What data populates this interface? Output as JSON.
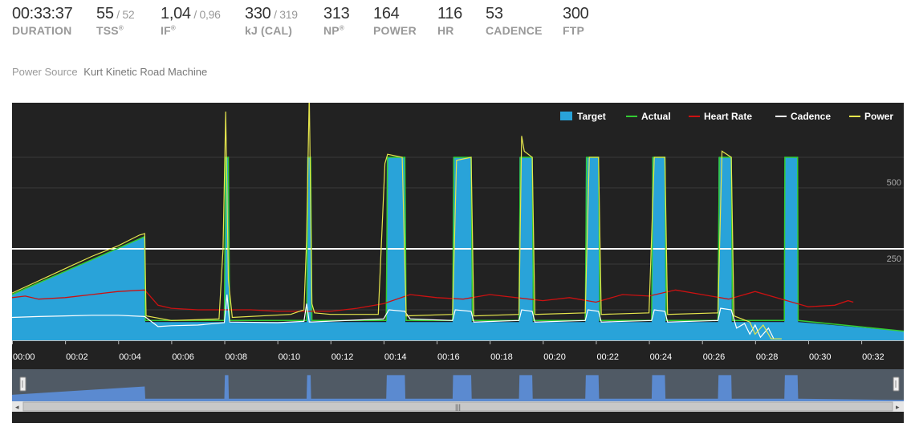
{
  "stats": [
    {
      "value": "00:33:37",
      "sub": "",
      "label": "DURATION",
      "reg": false
    },
    {
      "value": "55",
      "sub": "/ 52",
      "label": "TSS",
      "reg": true
    },
    {
      "value": "1,04",
      "sub": "/ 0,96",
      "label": "IF",
      "reg": true
    },
    {
      "value": "330",
      "sub": "/ 319",
      "label": "kJ (CAL)",
      "reg": false
    },
    {
      "value": "313",
      "sub": "",
      "label": "NP",
      "reg": true
    },
    {
      "value": "164",
      "sub": "",
      "label": "POWER",
      "reg": false
    },
    {
      "value": "116",
      "sub": "",
      "label": "HR",
      "reg": false
    },
    {
      "value": "53",
      "sub": "",
      "label": "CADENCE",
      "reg": false
    },
    {
      "value": "300",
      "sub": "",
      "label": "FTP",
      "reg": false
    }
  ],
  "power_source": {
    "label": "Power Source",
    "value": "Kurt Kinetic Road Machine"
  },
  "colors": {
    "background": "#222222",
    "target": "#29a3d9",
    "actual": "#33cc33",
    "heart_rate": "#cc1111",
    "cadence": "#ffffff",
    "power": "#e6e64d",
    "ftp_line": "#ffffff",
    "navigator": "#5b8ad0"
  },
  "chart_data": {
    "type": "area",
    "x_unit": "minutes",
    "xlim": [
      0,
      33.6
    ],
    "ylim": [
      0,
      700
    ],
    "x_ticks": [
      "00:00",
      "00:02",
      "00:04",
      "00:06",
      "00:08",
      "00:10",
      "00:12",
      "00:14",
      "00:16",
      "00:18",
      "00:20",
      "00:22",
      "00:24",
      "00:26",
      "00:28",
      "00:30",
      "00:32"
    ],
    "y_ticks": [
      {
        "value": 250,
        "label": "250"
      },
      {
        "value": 500,
        "label": "500"
      }
    ],
    "grid": true,
    "legend_position": "top-right",
    "legend": [
      "Target",
      "Actual",
      "Heart Rate",
      "Cadence",
      "Power"
    ],
    "ftp_line": 300,
    "target": {
      "name": "Target",
      "points": [
        [
          0,
          150
        ],
        [
          5,
          340
        ],
        [
          5.02,
          60
        ],
        [
          8,
          60
        ],
        [
          8.02,
          600
        ],
        [
          8.15,
          600
        ],
        [
          8.17,
          60
        ],
        [
          11.1,
          60
        ],
        [
          11.12,
          600
        ],
        [
          11.25,
          600
        ],
        [
          11.27,
          60
        ],
        [
          14.1,
          60
        ],
        [
          14.12,
          600
        ],
        [
          14.8,
          600
        ],
        [
          14.82,
          60
        ],
        [
          16.6,
          60
        ],
        [
          16.62,
          600
        ],
        [
          17.3,
          600
        ],
        [
          17.32,
          60
        ],
        [
          19.1,
          60
        ],
        [
          19.12,
          600
        ],
        [
          19.6,
          600
        ],
        [
          19.62,
          60
        ],
        [
          21.6,
          60
        ],
        [
          21.62,
          600
        ],
        [
          22.1,
          600
        ],
        [
          22.12,
          60
        ],
        [
          24.1,
          60
        ],
        [
          24.12,
          600
        ],
        [
          24.6,
          600
        ],
        [
          24.62,
          60
        ],
        [
          26.6,
          60
        ],
        [
          26.62,
          600
        ],
        [
          27.1,
          600
        ],
        [
          27.12,
          60
        ],
        [
          29.1,
          60
        ],
        [
          29.12,
          600
        ],
        [
          29.6,
          600
        ],
        [
          29.62,
          60
        ],
        [
          33.6,
          30
        ]
      ]
    },
    "power": {
      "name": "Power",
      "points": [
        [
          0,
          155
        ],
        [
          1,
          195
        ],
        [
          2,
          235
        ],
        [
          3,
          275
        ],
        [
          4,
          310
        ],
        [
          4.8,
          345
        ],
        [
          5,
          350
        ],
        [
          5.05,
          80
        ],
        [
          6,
          65
        ],
        [
          7.8,
          70
        ],
        [
          7.95,
          300
        ],
        [
          8.05,
          750
        ],
        [
          8.15,
          200
        ],
        [
          8.3,
          75
        ],
        [
          10.5,
          85
        ],
        [
          11,
          100
        ],
        [
          11.1,
          330
        ],
        [
          11.2,
          810
        ],
        [
          11.3,
          120
        ],
        [
          11.4,
          90
        ],
        [
          12,
          85
        ],
        [
          13.8,
          85
        ],
        [
          14.05,
          580
        ],
        [
          14.15,
          610
        ],
        [
          14.7,
          600
        ],
        [
          14.85,
          80
        ],
        [
          16.6,
          85
        ],
        [
          16.75,
          590
        ],
        [
          17.3,
          600
        ],
        [
          17.4,
          80
        ],
        [
          19.1,
          85
        ],
        [
          19.2,
          670
        ],
        [
          19.3,
          620
        ],
        [
          19.6,
          600
        ],
        [
          19.7,
          85
        ],
        [
          21.6,
          90
        ],
        [
          21.75,
          600
        ],
        [
          22.1,
          600
        ],
        [
          22.2,
          85
        ],
        [
          24,
          90
        ],
        [
          24.2,
          600
        ],
        [
          24.6,
          600
        ],
        [
          24.7,
          85
        ],
        [
          26.6,
          90
        ],
        [
          26.75,
          620
        ],
        [
          27.1,
          600
        ],
        [
          27.2,
          80
        ],
        [
          27.8,
          60
        ],
        [
          28,
          20
        ],
        [
          28.3,
          50
        ],
        [
          28.6,
          5
        ],
        [
          29,
          5
        ]
      ]
    },
    "actual": {
      "name": "Actual",
      "points": [
        [
          0,
          150
        ],
        [
          5,
          340
        ],
        [
          5.02,
          65
        ],
        [
          8,
          65
        ],
        [
          8.05,
          600
        ],
        [
          8.15,
          600
        ],
        [
          8.2,
          65
        ],
        [
          11.1,
          65
        ],
        [
          11.15,
          600
        ],
        [
          11.25,
          600
        ],
        [
          11.3,
          65
        ],
        [
          14.1,
          65
        ],
        [
          14.15,
          600
        ],
        [
          14.8,
          600
        ],
        [
          14.85,
          65
        ],
        [
          16.6,
          65
        ],
        [
          16.65,
          600
        ],
        [
          17.3,
          600
        ],
        [
          17.35,
          65
        ],
        [
          19.1,
          65
        ],
        [
          19.15,
          600
        ],
        [
          19.6,
          600
        ],
        [
          19.65,
          65
        ],
        [
          21.6,
          65
        ],
        [
          21.65,
          600
        ],
        [
          22.1,
          600
        ],
        [
          22.15,
          65
        ],
        [
          24.1,
          65
        ],
        [
          24.15,
          600
        ],
        [
          24.6,
          600
        ],
        [
          24.65,
          65
        ],
        [
          26.6,
          65
        ],
        [
          26.65,
          600
        ],
        [
          27.1,
          600
        ],
        [
          27.15,
          65
        ],
        [
          29.1,
          65
        ],
        [
          29.12,
          600
        ],
        [
          29.6,
          600
        ],
        [
          29.62,
          65
        ],
        [
          33.6,
          30
        ]
      ]
    },
    "heart_rate": {
      "name": "Heart Rate",
      "points": [
        [
          0,
          140
        ],
        [
          0.5,
          145
        ],
        [
          1,
          135
        ],
        [
          2,
          140
        ],
        [
          3,
          150
        ],
        [
          4,
          160
        ],
        [
          5,
          165
        ],
        [
          5.5,
          115
        ],
        [
          6,
          105
        ],
        [
          7,
          100
        ],
        [
          8,
          100
        ],
        [
          9,
          100
        ],
        [
          10,
          95
        ],
        [
          11,
          95
        ],
        [
          12,
          95
        ],
        [
          13,
          105
        ],
        [
          14,
          120
        ],
        [
          15,
          150
        ],
        [
          16,
          140
        ],
        [
          17,
          135
        ],
        [
          18,
          150
        ],
        [
          19,
          140
        ],
        [
          20,
          130
        ],
        [
          21,
          140
        ],
        [
          22,
          125
        ],
        [
          23,
          150
        ],
        [
          24,
          145
        ],
        [
          25,
          165
        ],
        [
          26,
          150
        ],
        [
          27,
          135
        ],
        [
          28,
          160
        ],
        [
          29,
          135
        ],
        [
          30,
          110
        ],
        [
          31,
          115
        ],
        [
          31.5,
          130
        ],
        [
          31.7,
          125
        ]
      ]
    },
    "cadence": {
      "name": "Cadence",
      "points": [
        [
          0,
          75
        ],
        [
          1,
          78
        ],
        [
          2,
          80
        ],
        [
          3,
          82
        ],
        [
          4,
          82
        ],
        [
          5,
          78
        ],
        [
          5.5,
          45
        ],
        [
          6,
          48
        ],
        [
          7,
          50
        ],
        [
          8,
          58
        ],
        [
          8.1,
          150
        ],
        [
          8.2,
          60
        ],
        [
          10,
          58
        ],
        [
          11,
          62
        ],
        [
          11.1,
          120
        ],
        [
          11.2,
          60
        ],
        [
          14,
          70
        ],
        [
          14.2,
          100
        ],
        [
          14.8,
          95
        ],
        [
          15,
          70
        ],
        [
          16.6,
          65
        ],
        [
          16.7,
          100
        ],
        [
          17.3,
          95
        ],
        [
          17.4,
          60
        ],
        [
          19.1,
          65
        ],
        [
          19.2,
          100
        ],
        [
          19.6,
          95
        ],
        [
          19.7,
          60
        ],
        [
          21.6,
          65
        ],
        [
          21.7,
          100
        ],
        [
          22.1,
          95
        ],
        [
          22.2,
          60
        ],
        [
          24.1,
          65
        ],
        [
          24.2,
          100
        ],
        [
          24.6,
          95
        ],
        [
          24.7,
          60
        ],
        [
          26.6,
          65
        ],
        [
          26.7,
          105
        ],
        [
          27.1,
          100
        ],
        [
          27.3,
          40
        ],
        [
          27.6,
          55
        ],
        [
          27.8,
          20
        ],
        [
          28,
          50
        ],
        [
          28.2,
          10
        ],
        [
          28.5,
          40
        ],
        [
          28.7,
          5
        ]
      ]
    }
  }
}
